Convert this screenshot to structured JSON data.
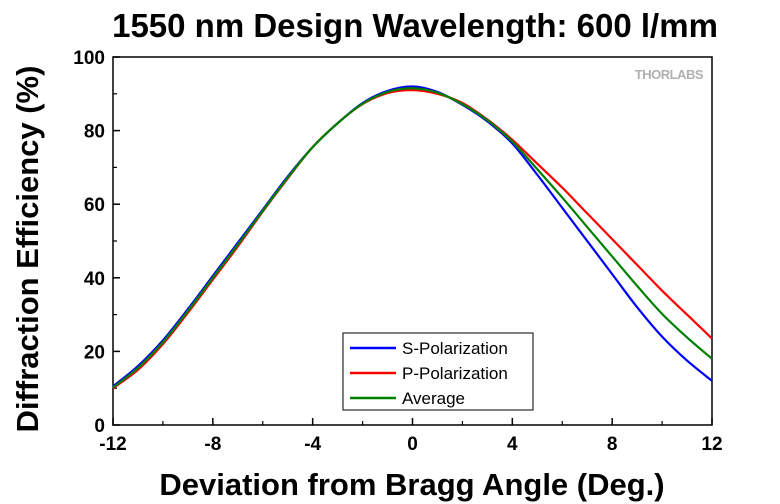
{
  "watermark": "THORLABS",
  "chart_data": {
    "type": "line",
    "title": "1550 nm Design Wavelength: 600 l/mm",
    "xlabel": "Deviation from Bragg Angle (Deg.)",
    "ylabel": "Diffraction Efficiency (%)",
    "xlim": [
      -12,
      12
    ],
    "ylim": [
      0,
      100
    ],
    "xticks": [
      -12,
      -8,
      -4,
      0,
      4,
      8,
      12
    ],
    "yticks": [
      0,
      20,
      40,
      60,
      80,
      100
    ],
    "grid": false,
    "legend_position": "bottom-center",
    "series": [
      {
        "name": "S-Polarization",
        "color": "#0000ff",
        "x": [
          -12,
          -11,
          -10,
          -9,
          -8,
          -7,
          -6,
          -5,
          -4,
          -3,
          -2,
          -1,
          0,
          1,
          2,
          3,
          4,
          5,
          6,
          7,
          8,
          9,
          10,
          11,
          12
        ],
        "y": [
          10.5,
          16,
          23,
          31.5,
          40.5,
          49.5,
          58.5,
          67.5,
          75.5,
          82,
          87.5,
          90.8,
          92,
          90.5,
          87,
          82.5,
          76.5,
          68,
          59,
          50,
          41,
          32,
          24,
          17.5,
          12
        ]
      },
      {
        "name": "P-Polarization",
        "color": "#ff0000",
        "x": [
          -12,
          -11,
          -10,
          -9,
          -8,
          -7,
          -6,
          -5,
          -4,
          -3,
          -2,
          -1,
          0,
          1,
          2,
          3,
          4,
          5,
          6,
          7,
          8,
          9,
          10,
          11,
          12
        ],
        "y": [
          10,
          15,
          22,
          30.5,
          39.5,
          48.5,
          58,
          67,
          75.5,
          82,
          87.2,
          90.2,
          91,
          90,
          87.5,
          83,
          77.5,
          71,
          64.5,
          57.5,
          50.5,
          43.5,
          36.5,
          30,
          23.5
        ]
      },
      {
        "name": "Average",
        "color": "#008000",
        "x": [
          -12,
          -11,
          -10,
          -9,
          -8,
          -7,
          -6,
          -5,
          -4,
          -3,
          -2,
          -1,
          0,
          1,
          2,
          3,
          4,
          5,
          6,
          7,
          8,
          9,
          10,
          11,
          12
        ],
        "y": [
          10.2,
          15.5,
          22.5,
          31,
          40,
          49,
          58.2,
          67.2,
          75.5,
          82,
          87.3,
          90.5,
          91.5,
          90.3,
          87.2,
          82.8,
          77,
          69.5,
          61.8,
          53.8,
          45.8,
          37.8,
          30.2,
          23.8,
          18
        ]
      }
    ]
  }
}
